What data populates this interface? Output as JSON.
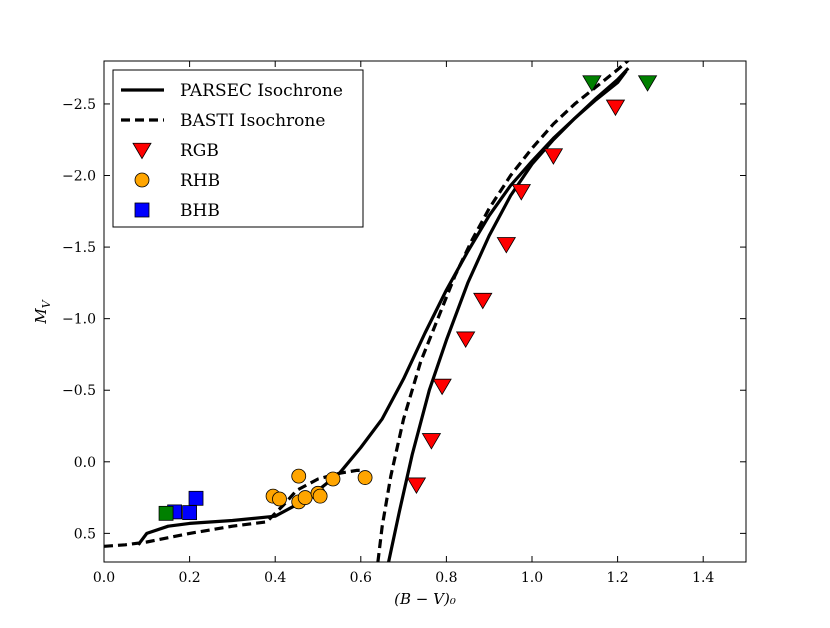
{
  "chart_data": {
    "type": "scatter",
    "title": "",
    "xlabel": "(B − V)₀",
    "ylabel": "M_V",
    "xlim": [
      0.0,
      1.5
    ],
    "ylim": [
      0.7,
      -2.8
    ],
    "y_inverted": true,
    "x_ticks": [
      0.0,
      0.2,
      0.4,
      0.6,
      0.8,
      1.0,
      1.2,
      1.4
    ],
    "x_tick_labels": [
      "0.0",
      "0.2",
      "0.4",
      "0.6",
      "0.8",
      "1.0",
      "1.2",
      "1.4"
    ],
    "y_ticks": [
      0.5,
      0.0,
      -0.5,
      -1.0,
      -1.5,
      -2.0,
      -2.5
    ],
    "y_tick_labels": [
      "0.5",
      "0.0",
      "−0.5",
      "−1.0",
      "−1.5",
      "−2.0",
      "−2.5"
    ],
    "legend_position": "upper-left",
    "legend": [
      {
        "label": "PARSEC Isochrone",
        "kind": "line",
        "dash": "solid",
        "color": "#000000"
      },
      {
        "label": "BASTI Isochrone",
        "kind": "line",
        "dash": "dashed",
        "color": "#000000"
      },
      {
        "label": "RGB",
        "kind": "marker",
        "marker": "triangle-down",
        "color": "#ff0000"
      },
      {
        "label": "RHB",
        "kind": "marker",
        "marker": "circle",
        "color": "#ffa500"
      },
      {
        "label": "BHB",
        "kind": "marker",
        "marker": "square",
        "color": "#0000ff"
      }
    ],
    "series": [
      {
        "name": "PARSEC Isochrone (RGB branch)",
        "kind": "line",
        "dash": "solid",
        "color": "#000000",
        "x": [
          0.665,
          0.69,
          0.72,
          0.76,
          0.8,
          0.85,
          0.9,
          0.95,
          1.0,
          1.05,
          1.1,
          1.15,
          1.2,
          1.225
        ],
        "y": [
          0.7,
          0.35,
          -0.05,
          -0.5,
          -0.85,
          -1.25,
          -1.58,
          -1.86,
          -2.08,
          -2.25,
          -2.4,
          -2.54,
          -2.67,
          -2.75
        ]
      },
      {
        "name": "PARSEC Isochrone (HB + upper branch)",
        "kind": "line",
        "dash": "solid",
        "color": "#000000",
        "x": [
          0.08,
          0.1,
          0.15,
          0.2,
          0.3,
          0.4,
          0.45,
          0.5,
          0.55,
          0.6,
          0.65,
          0.7,
          0.75,
          0.8,
          0.85,
          0.9,
          0.95,
          1.0,
          1.05,
          1.1,
          1.15,
          1.2,
          1.22
        ],
        "y": [
          0.58,
          0.5,
          0.45,
          0.43,
          0.41,
          0.38,
          0.3,
          0.2,
          0.08,
          -0.1,
          -0.3,
          -0.58,
          -0.9,
          -1.2,
          -1.47,
          -1.72,
          -1.93,
          -2.1,
          -2.26,
          -2.4,
          -2.53,
          -2.65,
          -2.73
        ]
      },
      {
        "name": "BASTI Isochrone (HB loop)",
        "kind": "line",
        "dash": "dashed",
        "color": "#000000",
        "x": [
          0.0,
          0.05,
          0.1,
          0.2,
          0.3,
          0.38,
          0.42,
          0.45,
          0.5,
          0.55,
          0.59,
          0.605
        ],
        "y": [
          0.59,
          0.58,
          0.56,
          0.5,
          0.45,
          0.42,
          0.3,
          0.2,
          0.12,
          0.08,
          0.06,
          0.06
        ]
      },
      {
        "name": "BASTI Isochrone (RGB branch)",
        "kind": "line",
        "dash": "dashed",
        "color": "#000000",
        "x": [
          0.64,
          0.65,
          0.67,
          0.7,
          0.74,
          0.78,
          0.82,
          0.86,
          0.9,
          0.95,
          1.0,
          1.05,
          1.1,
          1.15,
          1.2,
          1.235
        ],
        "y": [
          0.7,
          0.45,
          0.1,
          -0.3,
          -0.7,
          -1.0,
          -1.3,
          -1.55,
          -1.77,
          -2.0,
          -2.19,
          -2.36,
          -2.5,
          -2.62,
          -2.74,
          -2.83
        ]
      },
      {
        "name": "RGB",
        "kind": "scatter",
        "marker": "triangle-down",
        "color": "#ff0000",
        "x": [
          0.73,
          0.765,
          0.79,
          0.845,
          0.885,
          0.94,
          0.975,
          1.05,
          1.195
        ],
        "y": [
          0.16,
          -0.15,
          -0.53,
          -0.86,
          -1.13,
          -1.52,
          -1.89,
          -2.14,
          -2.48
        ]
      },
      {
        "name": "RGB (green)",
        "kind": "scatter",
        "marker": "triangle-down",
        "color": "#008000",
        "x": [
          1.14,
          1.27
        ],
        "y": [
          -2.65,
          -2.65
        ]
      },
      {
        "name": "RHB",
        "kind": "scatter",
        "marker": "circle",
        "color": "#ffa500",
        "x": [
          0.395,
          0.41,
          0.455,
          0.455,
          0.47,
          0.5,
          0.505,
          0.535,
          0.61
        ],
        "y": [
          0.24,
          0.26,
          0.28,
          0.1,
          0.25,
          0.22,
          0.24,
          0.12,
          0.11
        ]
      },
      {
        "name": "BHB",
        "kind": "scatter",
        "marker": "square",
        "color": "#0000ff",
        "x": [
          0.165,
          0.2,
          0.215
        ],
        "y": [
          0.35,
          0.355,
          0.255
        ]
      },
      {
        "name": "BHB (green)",
        "kind": "scatter",
        "marker": "square",
        "color": "#008000",
        "x": [
          0.145
        ],
        "y": [
          0.36
        ]
      }
    ]
  }
}
